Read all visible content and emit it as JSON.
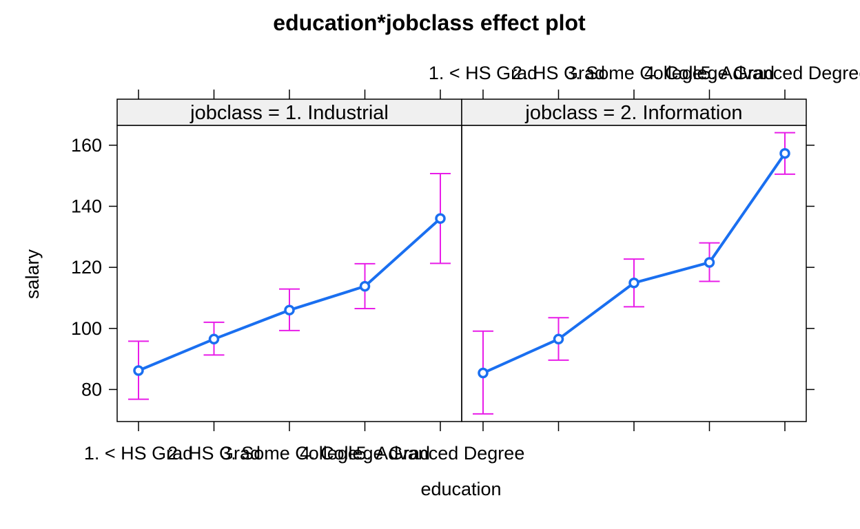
{
  "chart_data": {
    "type": "line",
    "title": "education*jobclass effect plot",
    "xlabel": "education",
    "ylabel": "salary",
    "ylim": [
      69.5,
      166.5
    ],
    "yticks": [
      80,
      100,
      120,
      140,
      160
    ],
    "categories": [
      "1. < HS Grad",
      "2. HS Grad",
      "3. Some College",
      "4. College Grad",
      "5. Advanced Degree"
    ],
    "panels": [
      {
        "strip": "jobclass = 1. Industrial",
        "fit": [
          86.2,
          96.5,
          106.0,
          113.8,
          136.0
        ],
        "lower": [
          76.8,
          91.3,
          99.3,
          106.5,
          121.3
        ],
        "upper": [
          95.8,
          102.0,
          112.9,
          121.2,
          150.7
        ]
      },
      {
        "strip": "jobclass = 2. Information",
        "fit": [
          85.4,
          96.5,
          114.9,
          121.6,
          157.3
        ],
        "lower": [
          72.0,
          89.6,
          107.1,
          115.4,
          150.5
        ],
        "upper": [
          99.1,
          103.5,
          122.7,
          128.0,
          164.1
        ]
      }
    ],
    "line_color": "#1a6ff0",
    "ci_color": "#e81ce8",
    "strip_color": "#f0f0f0",
    "grid": false,
    "legend": "none"
  }
}
